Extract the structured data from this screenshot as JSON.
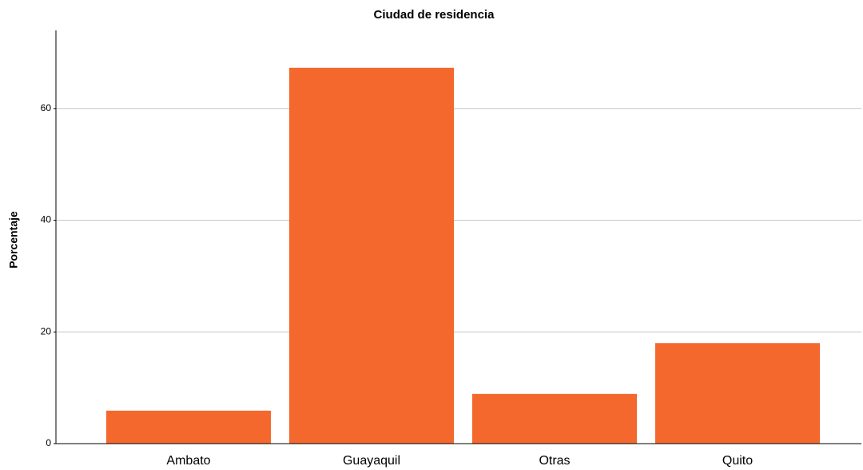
{
  "chart_data": {
    "type": "bar",
    "title": "Ciudad de residencia",
    "y_label": "Porcentaje",
    "categories": [
      "Ambato",
      "Guayaquil",
      "Otras",
      "Quito"
    ],
    "values": [
      5.9,
      67.3,
      8.9,
      18.0
    ],
    "color": "#f4682d",
    "ylim": [
      0,
      74
    ],
    "yticks": [
      0,
      20,
      40,
      60
    ],
    "grid": true
  }
}
